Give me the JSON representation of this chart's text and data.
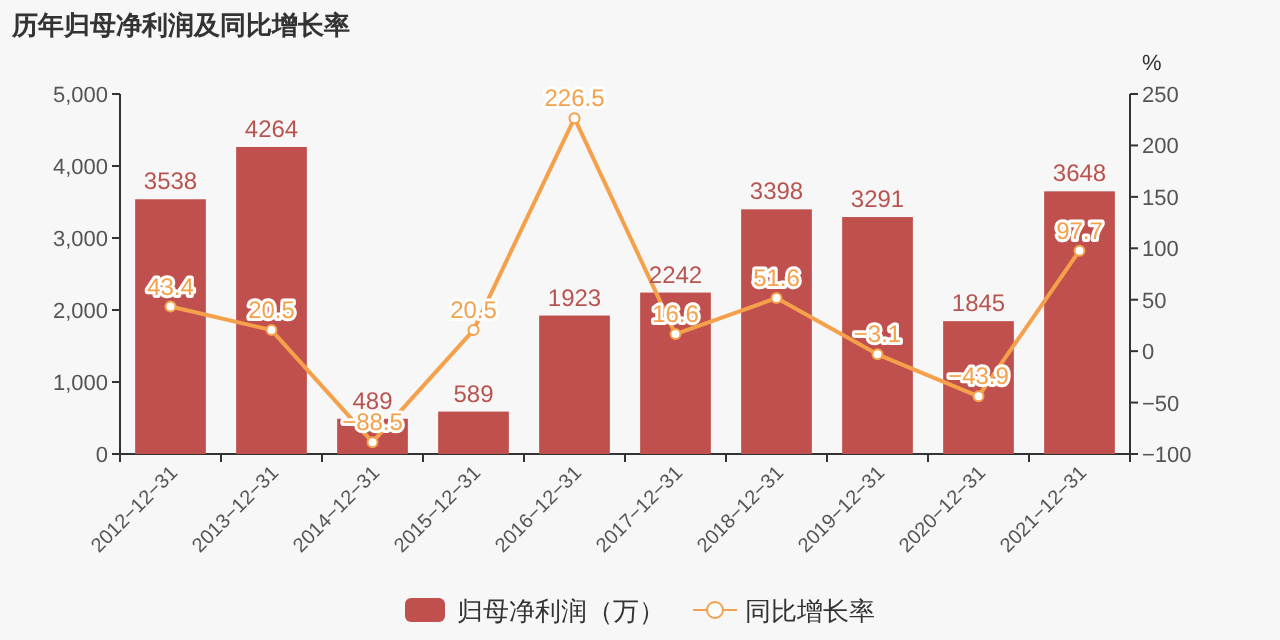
{
  "chart_data": {
    "type": "bar",
    "title": "历年归母净利润及同比增长率",
    "categories": [
      "2012−12−31",
      "2013−12−31",
      "2014−12−31",
      "2015−12−31",
      "2016−12−31",
      "2017−12−31",
      "2018−12−31",
      "2019−12−31",
      "2020−12−31",
      "2021−12−31"
    ],
    "series": [
      {
        "name": "归母净利润（万）",
        "color": "#c0504d",
        "values": [
          3538,
          4264,
          489,
          589,
          1923,
          2242,
          3398,
          3291,
          1845,
          3648
        ]
      },
      {
        "name": "同比增长率",
        "type": "line",
        "axis": "y2",
        "color": "#f5a04a",
        "marker": "circle",
        "values": [
          43.4,
          20.5,
          -88.5,
          20.5,
          226.5,
          16.6,
          51.6,
          -3.1,
          -43.9,
          97.7
        ]
      }
    ],
    "ylim": [
      0,
      5000
    ],
    "yticks": [
      0,
      {
        "value": 1000,
        "label": "1,000"
      },
      {
        "value": 2000,
        "label": "2,000"
      },
      {
        "value": 3000,
        "label": "3,000"
      },
      {
        "value": 4000,
        "label": "4,000"
      },
      {
        "value": 5000,
        "label": "5,000"
      }
    ],
    "y2label": "%",
    "y2lim": [
      -100,
      250
    ],
    "y2ticks": [
      {
        "value": -100,
        "label": "−100"
      },
      {
        "value": -50,
        "label": "−50"
      },
      0,
      50,
      100,
      150,
      200,
      250
    ],
    "data_labels": true,
    "legend": "bottom"
  }
}
